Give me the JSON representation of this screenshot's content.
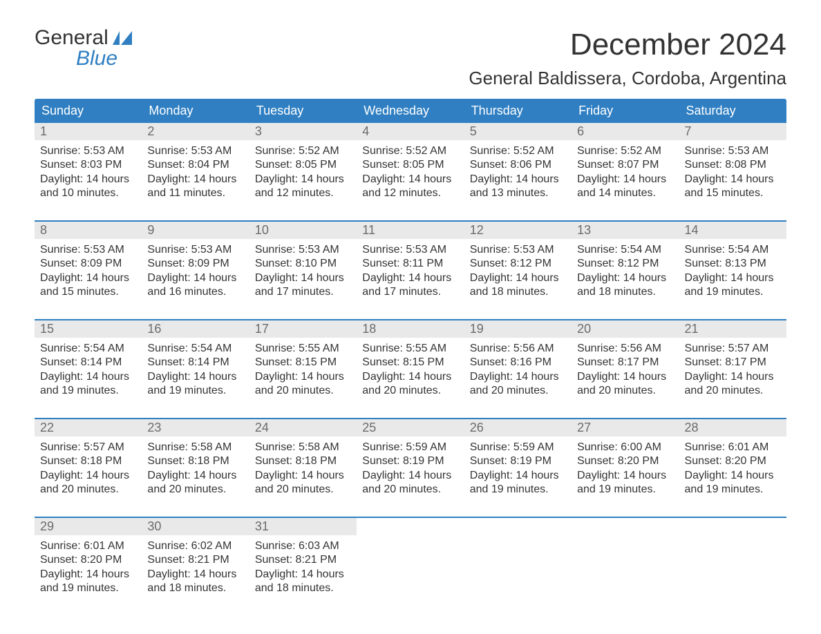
{
  "logo": {
    "word1": "General",
    "word2": "Blue"
  },
  "title": "December 2024",
  "location": "General Baldissera, Cordoba, Argentina",
  "colors": {
    "header_bg": "#2f7fc2",
    "header_text": "#ffffff",
    "daynum_bg": "#e9e9e9",
    "daynum_text": "#6b6b6b",
    "body_text": "#333333",
    "week_border": "#2f7fc2",
    "page_bg": "#ffffff",
    "logo_blue": "#2f7fc2"
  },
  "fonts": {
    "title_size": 44,
    "location_size": 26,
    "header_size": 18,
    "daynum_size": 18,
    "body_size": 16,
    "logo_size": 30
  },
  "weekdays": [
    "Sunday",
    "Monday",
    "Tuesday",
    "Wednesday",
    "Thursday",
    "Friday",
    "Saturday"
  ],
  "layout": {
    "columns": 7,
    "rows": 5,
    "start_weekday_index": 0
  },
  "days": [
    {
      "n": 1,
      "sunrise": "5:53 AM",
      "sunset": "8:03 PM",
      "daylight": "14 hours and 10 minutes."
    },
    {
      "n": 2,
      "sunrise": "5:53 AM",
      "sunset": "8:04 PM",
      "daylight": "14 hours and 11 minutes."
    },
    {
      "n": 3,
      "sunrise": "5:52 AM",
      "sunset": "8:05 PM",
      "daylight": "14 hours and 12 minutes."
    },
    {
      "n": 4,
      "sunrise": "5:52 AM",
      "sunset": "8:05 PM",
      "daylight": "14 hours and 12 minutes."
    },
    {
      "n": 5,
      "sunrise": "5:52 AM",
      "sunset": "8:06 PM",
      "daylight": "14 hours and 13 minutes."
    },
    {
      "n": 6,
      "sunrise": "5:52 AM",
      "sunset": "8:07 PM",
      "daylight": "14 hours and 14 minutes."
    },
    {
      "n": 7,
      "sunrise": "5:53 AM",
      "sunset": "8:08 PM",
      "daylight": "14 hours and 15 minutes."
    },
    {
      "n": 8,
      "sunrise": "5:53 AM",
      "sunset": "8:09 PM",
      "daylight": "14 hours and 15 minutes."
    },
    {
      "n": 9,
      "sunrise": "5:53 AM",
      "sunset": "8:09 PM",
      "daylight": "14 hours and 16 minutes."
    },
    {
      "n": 10,
      "sunrise": "5:53 AM",
      "sunset": "8:10 PM",
      "daylight": "14 hours and 17 minutes."
    },
    {
      "n": 11,
      "sunrise": "5:53 AM",
      "sunset": "8:11 PM",
      "daylight": "14 hours and 17 minutes."
    },
    {
      "n": 12,
      "sunrise": "5:53 AM",
      "sunset": "8:12 PM",
      "daylight": "14 hours and 18 minutes."
    },
    {
      "n": 13,
      "sunrise": "5:54 AM",
      "sunset": "8:12 PM",
      "daylight": "14 hours and 18 minutes."
    },
    {
      "n": 14,
      "sunrise": "5:54 AM",
      "sunset": "8:13 PM",
      "daylight": "14 hours and 19 minutes."
    },
    {
      "n": 15,
      "sunrise": "5:54 AM",
      "sunset": "8:14 PM",
      "daylight": "14 hours and 19 minutes."
    },
    {
      "n": 16,
      "sunrise": "5:54 AM",
      "sunset": "8:14 PM",
      "daylight": "14 hours and 19 minutes."
    },
    {
      "n": 17,
      "sunrise": "5:55 AM",
      "sunset": "8:15 PM",
      "daylight": "14 hours and 20 minutes."
    },
    {
      "n": 18,
      "sunrise": "5:55 AM",
      "sunset": "8:15 PM",
      "daylight": "14 hours and 20 minutes."
    },
    {
      "n": 19,
      "sunrise": "5:56 AM",
      "sunset": "8:16 PM",
      "daylight": "14 hours and 20 minutes."
    },
    {
      "n": 20,
      "sunrise": "5:56 AM",
      "sunset": "8:17 PM",
      "daylight": "14 hours and 20 minutes."
    },
    {
      "n": 21,
      "sunrise": "5:57 AM",
      "sunset": "8:17 PM",
      "daylight": "14 hours and 20 minutes."
    },
    {
      "n": 22,
      "sunrise": "5:57 AM",
      "sunset": "8:18 PM",
      "daylight": "14 hours and 20 minutes."
    },
    {
      "n": 23,
      "sunrise": "5:58 AM",
      "sunset": "8:18 PM",
      "daylight": "14 hours and 20 minutes."
    },
    {
      "n": 24,
      "sunrise": "5:58 AM",
      "sunset": "8:18 PM",
      "daylight": "14 hours and 20 minutes."
    },
    {
      "n": 25,
      "sunrise": "5:59 AM",
      "sunset": "8:19 PM",
      "daylight": "14 hours and 20 minutes."
    },
    {
      "n": 26,
      "sunrise": "5:59 AM",
      "sunset": "8:19 PM",
      "daylight": "14 hours and 19 minutes."
    },
    {
      "n": 27,
      "sunrise": "6:00 AM",
      "sunset": "8:20 PM",
      "daylight": "14 hours and 19 minutes."
    },
    {
      "n": 28,
      "sunrise": "6:01 AM",
      "sunset": "8:20 PM",
      "daylight": "14 hours and 19 minutes."
    },
    {
      "n": 29,
      "sunrise": "6:01 AM",
      "sunset": "8:20 PM",
      "daylight": "14 hours and 19 minutes."
    },
    {
      "n": 30,
      "sunrise": "6:02 AM",
      "sunset": "8:21 PM",
      "daylight": "14 hours and 18 minutes."
    },
    {
      "n": 31,
      "sunrise": "6:03 AM",
      "sunset": "8:21 PM",
      "daylight": "14 hours and 18 minutes."
    }
  ],
  "labels": {
    "sunrise_prefix": "Sunrise: ",
    "sunset_prefix": "Sunset: ",
    "daylight_prefix": "Daylight: "
  }
}
